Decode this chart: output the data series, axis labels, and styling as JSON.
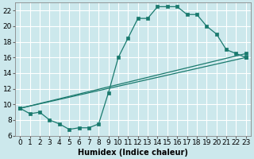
{
  "xlabel": "Humidex (Indice chaleur)",
  "bg_color": "#cce8ec",
  "grid_color": "#ffffff",
  "line_color": "#1a7a6e",
  "xlim": [
    -0.5,
    23.5
  ],
  "ylim": [
    6,
    23
  ],
  "xticks": [
    0,
    1,
    2,
    3,
    4,
    5,
    6,
    7,
    8,
    9,
    10,
    11,
    12,
    13,
    14,
    15,
    16,
    17,
    18,
    19,
    20,
    21,
    22,
    23
  ],
  "yticks": [
    6,
    8,
    10,
    12,
    14,
    16,
    18,
    20,
    22
  ],
  "curve1_x": [
    0,
    1,
    2,
    3,
    4,
    5,
    6,
    7,
    8,
    9,
    10,
    11,
    12,
    13,
    14,
    15,
    16,
    17,
    18,
    19,
    20,
    21,
    22,
    23
  ],
  "curve1_y": [
    9.5,
    8.8,
    9.0,
    8.0,
    7.5,
    6.8,
    7.0,
    7.0,
    7.5,
    11.5,
    16.0,
    18.5,
    21.0,
    21.0,
    22.5,
    22.5,
    22.5,
    21.5,
    21.5,
    20.0,
    19.0,
    17.0,
    16.5,
    16.0
  ],
  "curve2_x": [
    0,
    23
  ],
  "curve2_y": [
    9.5,
    16.0
  ],
  "curve3_x": [
    0,
    23
  ],
  "curve3_y": [
    9.5,
    16.5
  ],
  "xlabel_fontsize": 7,
  "tick_fontsize": 6.5
}
